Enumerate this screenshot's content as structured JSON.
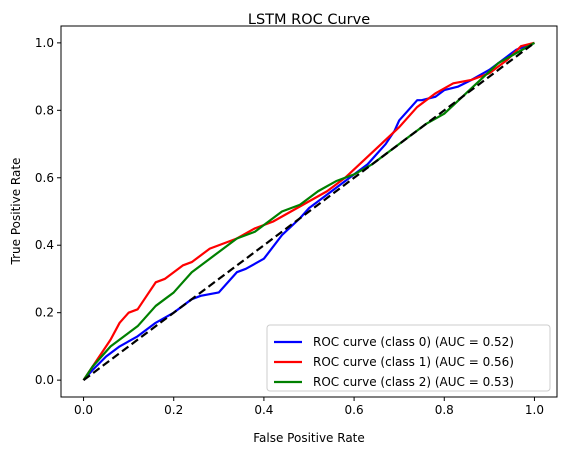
{
  "chart_data": {
    "type": "line",
    "title": "LSTM ROC Curve",
    "xlabel": "False Positive Rate",
    "ylabel": "True Positive Rate",
    "xlim": [
      -0.05,
      1.05
    ],
    "ylim": [
      -0.05,
      1.05
    ],
    "x_ticks": [
      "0.0",
      "0.2",
      "0.4",
      "0.6",
      "0.8",
      "1.0"
    ],
    "y_ticks": [
      "0.0",
      "0.2",
      "0.4",
      "0.6",
      "0.8",
      "1.0"
    ],
    "grid": false,
    "legend_position": "lower-right",
    "diagonal": {
      "x": [
        0,
        1
      ],
      "y": [
        0,
        1
      ],
      "color": "#000000",
      "style": "dashed"
    },
    "series": [
      {
        "name": "ROC curve (class 0) (AUC = 0.52)",
        "color": "#0000ff",
        "x": [
          0,
          0.02,
          0.05,
          0.08,
          0.12,
          0.16,
          0.2,
          0.24,
          0.26,
          0.3,
          0.34,
          0.36,
          0.4,
          0.44,
          0.48,
          0.5,
          0.54,
          0.58,
          0.6,
          0.63,
          0.65,
          0.67,
          0.69,
          0.7,
          0.72,
          0.74,
          0.75,
          0.78,
          0.8,
          0.83,
          0.86,
          0.9,
          0.94,
          0.96,
          0.98,
          1.0
        ],
        "y": [
          0,
          0.03,
          0.07,
          0.1,
          0.13,
          0.17,
          0.2,
          0.24,
          0.25,
          0.26,
          0.32,
          0.33,
          0.36,
          0.43,
          0.48,
          0.51,
          0.55,
          0.59,
          0.61,
          0.64,
          0.67,
          0.7,
          0.74,
          0.77,
          0.8,
          0.83,
          0.83,
          0.84,
          0.86,
          0.87,
          0.89,
          0.92,
          0.96,
          0.98,
          0.99,
          1.0
        ]
      },
      {
        "name": "ROC curve (class 1) (AUC = 0.56)",
        "color": "#ff0000",
        "x": [
          0,
          0.02,
          0.04,
          0.06,
          0.08,
          0.1,
          0.12,
          0.14,
          0.16,
          0.18,
          0.2,
          0.22,
          0.24,
          0.26,
          0.28,
          0.3,
          0.32,
          0.34,
          0.38,
          0.42,
          0.46,
          0.5,
          0.54,
          0.58,
          0.62,
          0.66,
          0.7,
          0.74,
          0.78,
          0.82,
          0.86,
          0.9,
          0.94,
          0.97,
          1.0
        ],
        "y": [
          0,
          0.04,
          0.08,
          0.12,
          0.17,
          0.2,
          0.21,
          0.25,
          0.29,
          0.3,
          0.32,
          0.34,
          0.35,
          0.37,
          0.39,
          0.4,
          0.41,
          0.42,
          0.45,
          0.47,
          0.5,
          0.53,
          0.56,
          0.6,
          0.65,
          0.7,
          0.75,
          0.81,
          0.85,
          0.88,
          0.89,
          0.91,
          0.95,
          0.99,
          1.0
        ]
      },
      {
        "name": "ROC curve (class 2) (AUC = 0.53)",
        "color": "#008000",
        "x": [
          0,
          0.02,
          0.04,
          0.06,
          0.08,
          0.1,
          0.12,
          0.14,
          0.16,
          0.18,
          0.2,
          0.22,
          0.24,
          0.26,
          0.28,
          0.3,
          0.32,
          0.34,
          0.36,
          0.38,
          0.4,
          0.44,
          0.48,
          0.52,
          0.56,
          0.6,
          0.64,
          0.68,
          0.72,
          0.76,
          0.8,
          0.84,
          0.88,
          0.92,
          0.96,
          1.0
        ],
        "y": [
          0,
          0.04,
          0.07,
          0.1,
          0.12,
          0.14,
          0.16,
          0.19,
          0.22,
          0.24,
          0.26,
          0.29,
          0.32,
          0.34,
          0.36,
          0.38,
          0.4,
          0.42,
          0.43,
          0.44,
          0.46,
          0.5,
          0.52,
          0.56,
          0.59,
          0.61,
          0.64,
          0.68,
          0.72,
          0.76,
          0.79,
          0.84,
          0.89,
          0.94,
          0.97,
          1.0
        ]
      }
    ]
  }
}
